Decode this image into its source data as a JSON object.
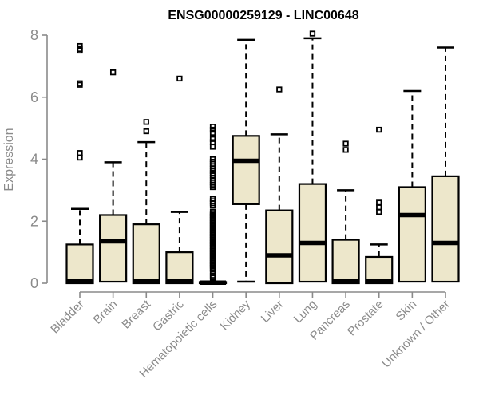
{
  "chart_data": {
    "type": "boxplot",
    "title": "ENSG00000259129 - LINC00648",
    "xlabel": "",
    "ylabel": "Expression",
    "ylim": [
      0,
      8
    ],
    "yticks": [
      0,
      2,
      4,
      6,
      8
    ],
    "grid": false,
    "legend": "none",
    "categories": [
      "Bladder",
      "Brain",
      "Breast",
      "Gastric",
      "Hematopoietic cells",
      "Kidney",
      "Liver",
      "Lung",
      "Pancreas",
      "Prostate",
      "Skin",
      "Unknown / Other"
    ],
    "series": [
      {
        "label": "Bladder",
        "whisker_low": 0,
        "q1": 0,
        "median": 0.07,
        "q3": 1.25,
        "whisker_high": 2.4,
        "outliers": [
          4.05,
          4.2,
          6.4,
          6.45,
          7.5,
          7.55,
          7.65
        ]
      },
      {
        "label": "Brain",
        "whisker_low": 0.05,
        "q1": 0.05,
        "median": 1.35,
        "q3": 2.2,
        "whisker_high": 3.9,
        "outliers": [
          6.8
        ]
      },
      {
        "label": "Breast",
        "whisker_low": 0,
        "q1": 0,
        "median": 0.07,
        "q3": 1.9,
        "whisker_high": 4.55,
        "outliers": [
          4.9,
          5.2
        ]
      },
      {
        "label": "Gastric",
        "whisker_low": 0,
        "q1": 0,
        "median": 0.07,
        "q3": 1.0,
        "whisker_high": 2.3,
        "outliers": [
          6.6
        ]
      },
      {
        "label": "Hematopoietic cells",
        "whisker_low": 0,
        "q1": 0,
        "median": 0.02,
        "q3": 0.04,
        "whisker_high": 0.04,
        "outliers": [
          5.05,
          4.95,
          4.85,
          4.65,
          4.55,
          4.4,
          4.0,
          3.92,
          3.85,
          3.78,
          3.7,
          3.62,
          3.55,
          3.48,
          3.4,
          3.32,
          3.25,
          3.18,
          3.1,
          2.72,
          2.65,
          2.58,
          2.5,
          2.3,
          2.25,
          2.2,
          2.15,
          2.1,
          2.05,
          2.0,
          1.95,
          1.9,
          1.85,
          1.8,
          1.75,
          1.7,
          1.65,
          1.6,
          1.55,
          1.5,
          1.45,
          1.4,
          1.35,
          1.3,
          1.25,
          1.2,
          1.15,
          1.1,
          1.05,
          1.0,
          0.95,
          0.9,
          0.85,
          0.8,
          0.75,
          0.7,
          0.65,
          0.6,
          0.55,
          0.5,
          0.45,
          0.35,
          0.25,
          0.18
        ]
      },
      {
        "label": "Kidney",
        "whisker_low": 0.05,
        "q1": 2.55,
        "median": 3.95,
        "q3": 4.75,
        "whisker_high": 7.85,
        "outliers": []
      },
      {
        "label": "Liver",
        "whisker_low": 0,
        "q1": 0,
        "median": 0.9,
        "q3": 2.35,
        "whisker_high": 4.8,
        "outliers": [
          6.25
        ]
      },
      {
        "label": "Lung",
        "whisker_low": 0.05,
        "q1": 0.05,
        "median": 1.3,
        "q3": 3.2,
        "whisker_high": 7.9,
        "outliers": [
          8.05
        ]
      },
      {
        "label": "Pancreas",
        "whisker_low": 0,
        "q1": 0,
        "median": 0.07,
        "q3": 1.4,
        "whisker_high": 3.0,
        "outliers": [
          4.3,
          4.5
        ]
      },
      {
        "label": "Prostate",
        "whisker_low": 0,
        "q1": 0,
        "median": 0.07,
        "q3": 0.85,
        "whisker_high": 1.25,
        "outliers": [
          2.3,
          2.45,
          2.6,
          4.95
        ]
      },
      {
        "label": "Skin",
        "whisker_low": 0.05,
        "q1": 0.05,
        "median": 2.2,
        "q3": 3.1,
        "whisker_high": 6.2,
        "outliers": []
      },
      {
        "label": "Unknown / Other",
        "whisker_low": 0.05,
        "q1": 0.05,
        "median": 1.3,
        "q3": 3.45,
        "whisker_high": 7.6,
        "outliers": []
      }
    ],
    "colors": {
      "box_fill": "#EDE7CB",
      "box_border": "#000000",
      "median": "#000000",
      "whisker": "#000000",
      "outlier": "#000000",
      "axis": "#8A8A8A",
      "tick_label": "#8A8A8A",
      "title": "#000000",
      "background": "#FFFFFF"
    }
  }
}
